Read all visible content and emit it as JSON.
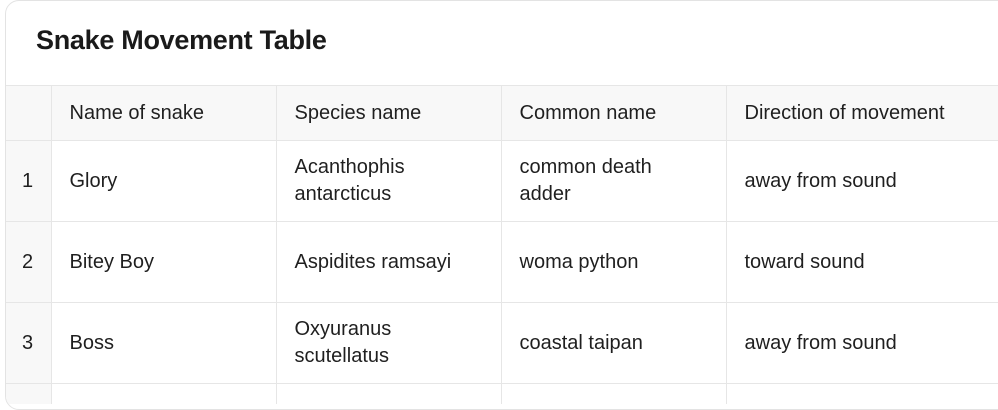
{
  "table": {
    "title": "Snake Movement Table",
    "columns": [
      "Name of snake",
      "Species name",
      "Common name",
      "Direction of movement"
    ],
    "rows": [
      {
        "index": "1",
        "name": "Glory",
        "species": "Acanthophis antarcticus",
        "common": "common death adder",
        "direction": "away from sound"
      },
      {
        "index": "2",
        "name": "Bitey Boy",
        "species": "Aspidites ramsayi",
        "common": "woma python",
        "direction": "toward sound"
      },
      {
        "index": "3",
        "name": "Boss",
        "species": "Oxyuranus scutellatus",
        "common": "coastal taipan",
        "direction": "away from sound"
      }
    ]
  }
}
